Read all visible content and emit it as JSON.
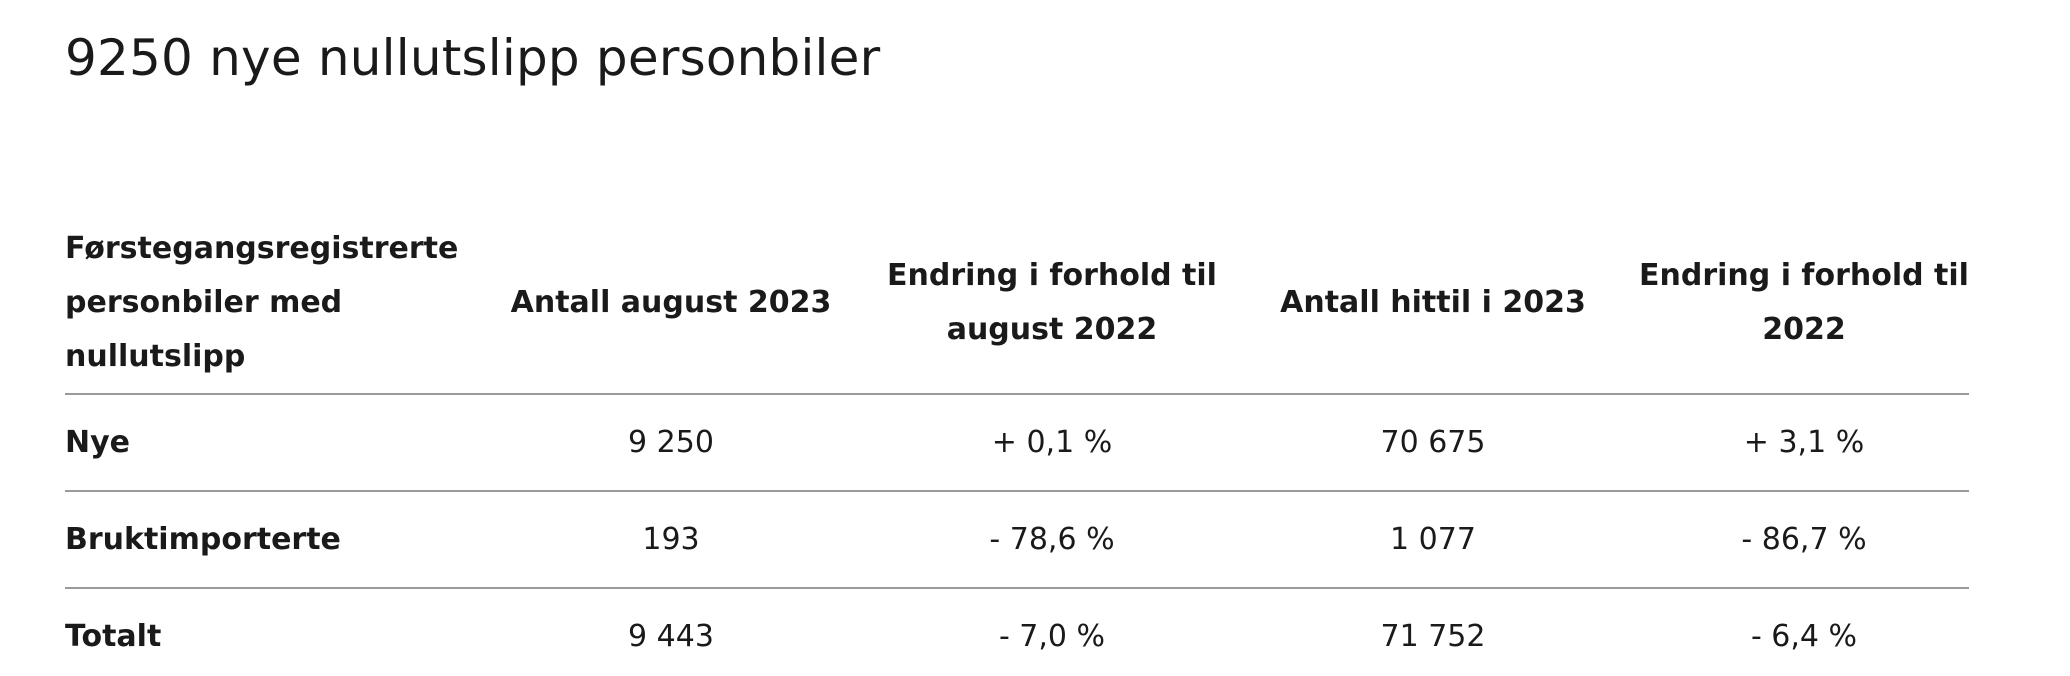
{
  "title": "9250 nye nullutslipp personbiler",
  "table": {
    "headers": [
      "Førstegangsregistrerte personbiler med nullutslipp",
      "Antall august 2023",
      "Endring i forhold til august 2022",
      "Antall hittil i 2023",
      "Endring i forhold til 2022"
    ],
    "rows": [
      {
        "label": "Nye",
        "cells": [
          "9 250",
          "+ 0,1 %",
          "70 675",
          "+ 3,1 %"
        ]
      },
      {
        "label": "Bruktimporterte",
        "cells": [
          "193",
          "- 78,6 %",
          "1 077",
          "- 86,7 %"
        ]
      },
      {
        "label": "Totalt",
        "cells": [
          "9 443",
          "- 7,0 %",
          "71 752",
          "- 6,4 %"
        ]
      }
    ]
  }
}
